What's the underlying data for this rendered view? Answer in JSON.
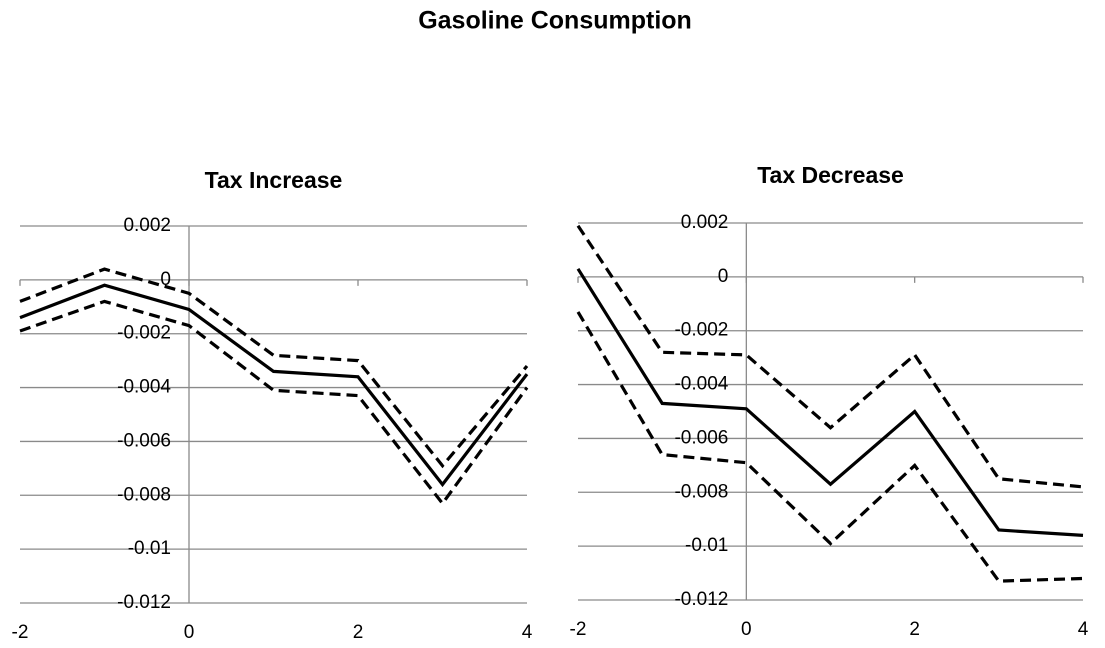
{
  "title": "Gasoline Consumption",
  "chart_data": [
    {
      "type": "line",
      "title": "Tax Increase",
      "x": [
        -2,
        -1,
        0,
        1,
        2,
        3,
        4
      ],
      "series": [
        {
          "color": "#000000",
          "style": "solid",
          "values": [
            -0.0014,
            -0.0002,
            -0.0011,
            -0.0034,
            -0.0036,
            -0.0076,
            -0.0035
          ]
        },
        {
          "color": "#000000",
          "style": "dashed",
          "values": [
            -0.0008,
            0.0004,
            -0.0005,
            -0.0028,
            -0.003,
            -0.0069,
            -0.0032
          ]
        },
        {
          "color": "#000000",
          "style": "dashed",
          "values": [
            -0.0019,
            -0.0008,
            -0.0017,
            -0.0041,
            -0.0043,
            -0.0083,
            -0.004
          ]
        }
      ],
      "xlim": [
        -2,
        4
      ],
      "xticks": [
        -2,
        0,
        2,
        4
      ],
      "ylim": [
        -0.012,
        0.002
      ],
      "yticks": [
        0.002,
        0,
        -0.002,
        -0.004,
        -0.006,
        -0.008,
        -0.01,
        -0.012
      ],
      "grid": true
    },
    {
      "type": "line",
      "title": "Tax Decrease",
      "x": [
        -2,
        -1,
        0,
        1,
        2,
        3,
        4
      ],
      "series": [
        {
          "color": "#000000",
          "style": "solid",
          "values": [
            0.0003,
            -0.0047,
            -0.0049,
            -0.0077,
            -0.005,
            -0.0094,
            -0.0096
          ]
        },
        {
          "color": "#000000",
          "style": "dashed",
          "values": [
            0.0019,
            -0.0028,
            -0.0029,
            -0.0056,
            -0.0029,
            -0.0075,
            -0.0078
          ]
        },
        {
          "color": "#000000",
          "style": "dashed",
          "values": [
            -0.0013,
            -0.0066,
            -0.0069,
            -0.0099,
            -0.007,
            -0.0113,
            -0.0112
          ]
        }
      ],
      "xlim": [
        -2,
        4
      ],
      "xticks": [
        -2,
        0,
        2,
        4
      ],
      "ylim": [
        -0.012,
        0.002
      ],
      "yticks": [
        0.002,
        0,
        -0.002,
        -0.004,
        -0.006,
        -0.008,
        -0.01,
        -0.012
      ],
      "grid": true
    }
  ]
}
